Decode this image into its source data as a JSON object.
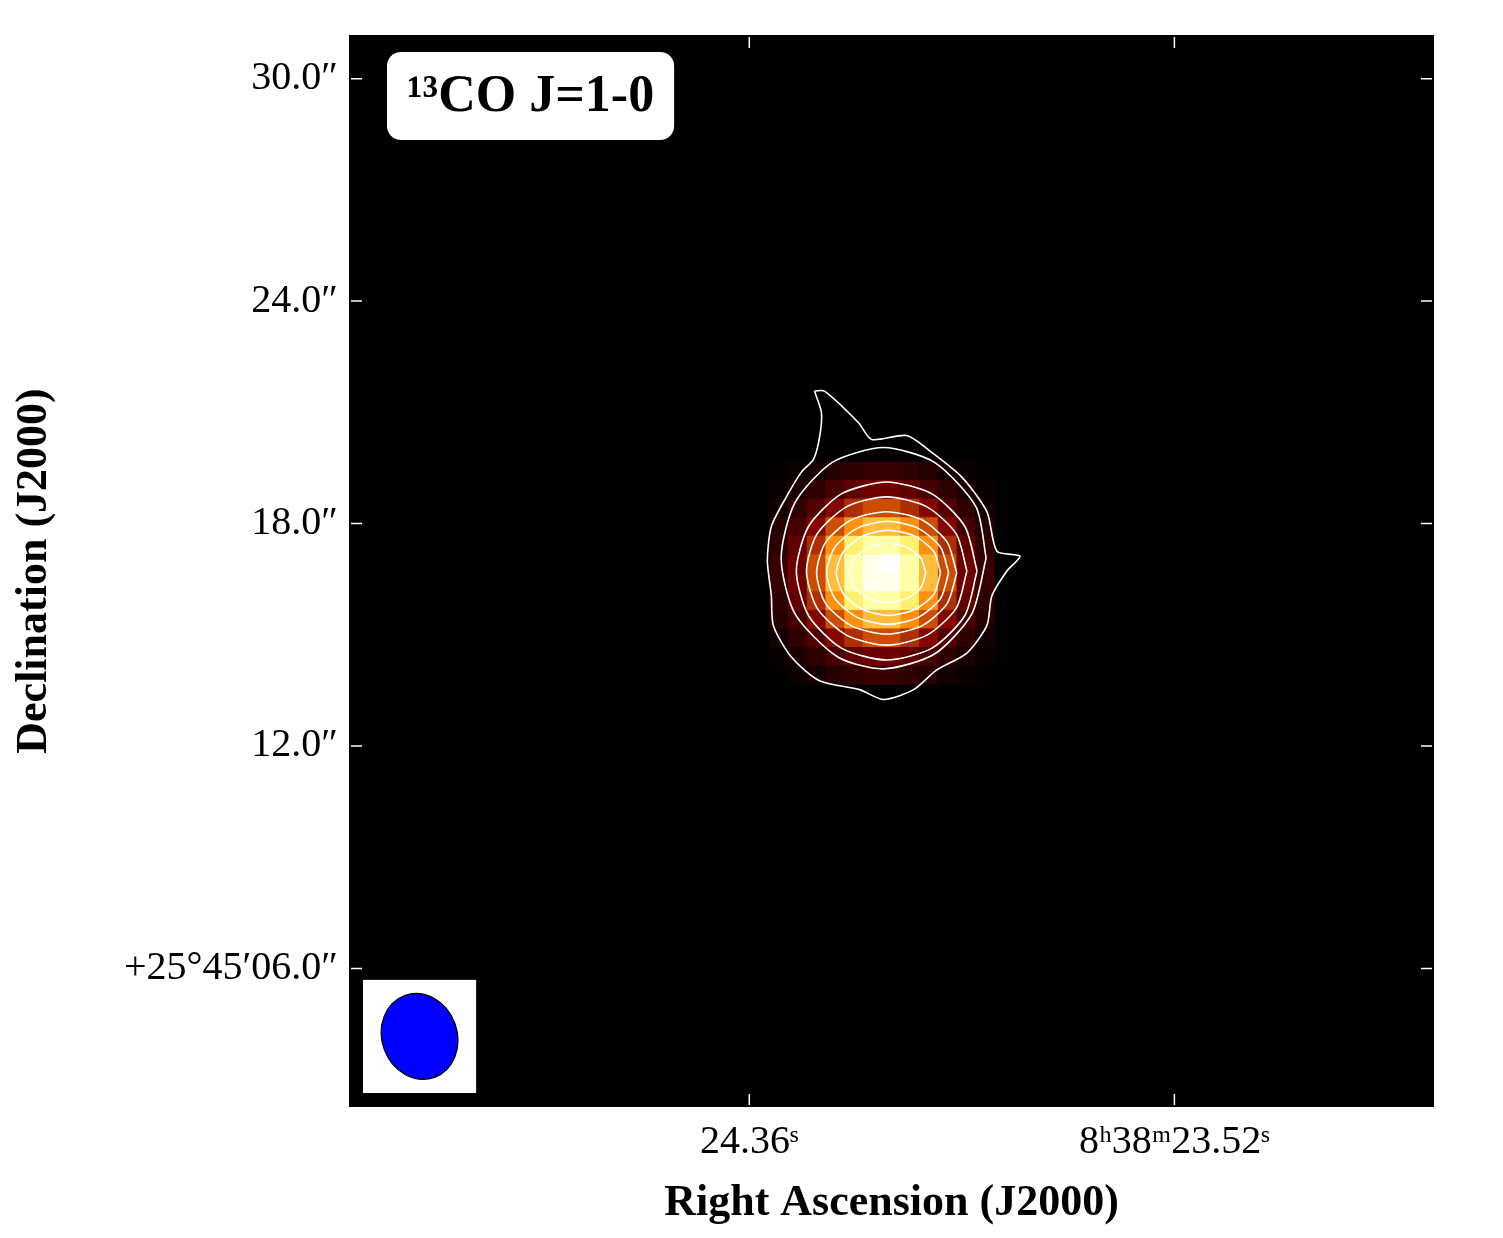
{
  "chart_data": {
    "type": "heatmap",
    "title": "¹³CO J=1-0",
    "x_label": "Right Ascension (J2000)",
    "y_label": "Declination (J2000)",
    "xlim": [
      25.149,
      23.009
    ],
    "ylim": [
      2.29,
      31.15
    ],
    "xticks": [
      {
        "value": 24.36,
        "label": "24.36ˢ"
      },
      {
        "value": 23.52,
        "label": "8ʰ38ᵐ23.52ˢ"
      }
    ],
    "yticks": [
      {
        "value": 30,
        "label": "30.0″"
      },
      {
        "value": 24,
        "label": "24.0″"
      },
      {
        "value": 18,
        "label": "18.0″"
      },
      {
        "value": 12,
        "label": "12.0″"
      },
      {
        "value": 6,
        "label": "+25°45′06.0″"
      }
    ],
    "grid": false,
    "tick_labels": true,
    "x": [
      24.3021,
      24.265,
      24.228,
      24.191,
      24.154,
      24.117,
      24.08,
      24.043,
      24.006,
      23.969,
      23.932,
      23.8949
    ],
    "y": [
      19.42,
      18.92,
      18.42,
      17.92,
      17.42,
      16.92,
      16.42,
      15.92,
      15.42,
      14.92,
      14.42,
      13.92
    ],
    "cells": [
      [
        1,
        2,
        4,
        7,
        9,
        11,
        11,
        9,
        7,
        4,
        2,
        1
      ],
      [
        2,
        5,
        9,
        14,
        19,
        22,
        22,
        19,
        14,
        9,
        5,
        2
      ],
      [
        4,
        9,
        16,
        26,
        34,
        40,
        40,
        34,
        26,
        16,
        9,
        4
      ],
      [
        7,
        14,
        26,
        40,
        53,
        62,
        62,
        53,
        40,
        26,
        14,
        7
      ],
      [
        9,
        19,
        34,
        53,
        72,
        83,
        83,
        72,
        53,
        34,
        19,
        9
      ],
      [
        11,
        22,
        40,
        62,
        83,
        96,
        100,
        83,
        62,
        40,
        22,
        11
      ],
      [
        11,
        22,
        40,
        62,
        83,
        96,
        96,
        83,
        62,
        40,
        22,
        11
      ],
      [
        9,
        19,
        34,
        53,
        72,
        83,
        83,
        72,
        53,
        34,
        19,
        9
      ],
      [
        7,
        14,
        26,
        40,
        53,
        62,
        62,
        53,
        40,
        26,
        14,
        7
      ],
      [
        4,
        9,
        16,
        26,
        34,
        40,
        40,
        34,
        26,
        16,
        9,
        4
      ],
      [
        2,
        5,
        9,
        14,
        19,
        22,
        22,
        19,
        14,
        9,
        5,
        2
      ],
      [
        1,
        2,
        4,
        7,
        9,
        11,
        11,
        9,
        7,
        4,
        2,
        1
      ]
    ],
    "zlim": [
      0,
      100
    ],
    "contours": {
      "color": "#ffffff",
      "paths": [
        [
          [
            24.2312,
            21.573
          ],
          [
            24.2114,
            21.573
          ],
          [
            24.1441,
            20.72
          ],
          [
            24.1183,
            20.267
          ],
          [
            24.049,
            20.373
          ],
          [
            23.9995,
            19.92
          ],
          [
            23.94,
            19.253
          ],
          [
            23.8905,
            18.32
          ],
          [
            23.8707,
            17.253
          ],
          [
            23.8251,
            17.12
          ],
          [
            23.8509,
            16.72
          ],
          [
            23.8806,
            16.053
          ],
          [
            23.8905,
            15.253
          ],
          [
            23.93,
            14.507
          ],
          [
            23.9895,
            14.053
          ],
          [
            24.0351,
            13.52
          ],
          [
            24.0945,
            13.253
          ],
          [
            24.1421,
            13.52
          ],
          [
            24.2213,
            13.76
          ],
          [
            24.2768,
            14.4
          ],
          [
            24.3125,
            15.253
          ],
          [
            24.3164,
            16.053
          ],
          [
            24.3243,
            17.0
          ],
          [
            24.3164,
            17.92
          ],
          [
            24.2867,
            18.72
          ],
          [
            24.257,
            19.387
          ],
          [
            24.2332,
            19.733
          ],
          [
            24.2213,
            20.32
          ],
          [
            24.2174,
            20.987
          ],
          [
            24.2312,
            21.573
          ]
        ],
        [
          [
            23.892,
            17.07
          ],
          [
            23.912,
            18.45
          ],
          [
            23.994,
            19.65
          ],
          [
            24.095,
            20.05
          ],
          [
            24.196,
            19.65
          ],
          [
            24.27,
            18.56
          ],
          [
            24.297,
            17.07
          ],
          [
            24.27,
            15.57
          ],
          [
            24.185,
            14.4
          ],
          [
            24.095,
            14.08
          ],
          [
            23.994,
            14.48
          ],
          [
            23.92,
            15.57
          ],
          [
            23.892,
            17.07
          ]
        ],
        [
          [
            23.91,
            16.72
          ],
          [
            23.934,
            17.92
          ],
          [
            23.999,
            18.8
          ],
          [
            24.089,
            19.12
          ],
          [
            24.178,
            18.8
          ],
          [
            24.243,
            17.92
          ],
          [
            24.267,
            16.72
          ],
          [
            24.243,
            15.52
          ],
          [
            24.178,
            14.64
          ],
          [
            24.089,
            14.32
          ],
          [
            23.999,
            14.64
          ],
          [
            23.934,
            15.52
          ],
          [
            23.91,
            16.72
          ]
        ],
        [
          [
            23.93,
            16.72
          ],
          [
            23.951,
            17.72
          ],
          [
            24.009,
            18.45
          ],
          [
            24.089,
            18.72
          ],
          [
            24.168,
            18.45
          ],
          [
            24.226,
            17.72
          ],
          [
            24.247,
            16.72
          ],
          [
            24.226,
            15.72
          ],
          [
            24.168,
            14.99
          ],
          [
            24.089,
            14.72
          ],
          [
            24.009,
            14.99
          ],
          [
            23.951,
            15.72
          ],
          [
            23.93,
            16.72
          ]
        ],
        [
          [
            23.95,
            16.67
          ],
          [
            23.969,
            17.5
          ],
          [
            24.019,
            18.1
          ],
          [
            24.089,
            18.32
          ],
          [
            24.158,
            18.1
          ],
          [
            24.209,
            17.5
          ],
          [
            24.227,
            16.67
          ],
          [
            24.209,
            15.84
          ],
          [
            24.158,
            15.24
          ],
          [
            24.089,
            15.02
          ],
          [
            24.019,
            15.24
          ],
          [
            23.969,
            15.84
          ],
          [
            23.95,
            16.67
          ]
        ],
        [
          [
            23.966,
            16.67
          ],
          [
            23.982,
            17.36
          ],
          [
            24.026,
            17.87
          ],
          [
            24.087,
            18.06
          ],
          [
            24.147,
            17.87
          ],
          [
            24.191,
            17.36
          ],
          [
            24.207,
            16.67
          ],
          [
            24.191,
            15.98
          ],
          [
            24.147,
            15.47
          ],
          [
            24.087,
            15.28
          ],
          [
            24.026,
            15.47
          ],
          [
            23.982,
            15.98
          ],
          [
            23.966,
            16.67
          ]
        ],
        [
          [
            23.982,
            16.67
          ],
          [
            23.995,
            17.24
          ],
          [
            24.033,
            17.66
          ],
          [
            24.085,
            17.82
          ],
          [
            24.136,
            17.66
          ],
          [
            24.174,
            17.24
          ],
          [
            24.188,
            16.67
          ],
          [
            24.174,
            16.1
          ],
          [
            24.136,
            15.68
          ],
          [
            24.085,
            15.52
          ],
          [
            24.033,
            15.68
          ],
          [
            23.995,
            16.1
          ],
          [
            23.982,
            16.67
          ]
        ],
        [
          [
            24.011,
            16.67
          ],
          [
            24.021,
            17.07
          ],
          [
            24.049,
            17.36
          ],
          [
            24.087,
            17.47
          ],
          [
            24.124,
            17.36
          ],
          [
            24.152,
            17.07
          ],
          [
            24.162,
            16.67
          ],
          [
            24.152,
            16.27
          ],
          [
            24.124,
            15.98
          ],
          [
            24.087,
            15.87
          ],
          [
            24.049,
            15.98
          ],
          [
            24.021,
            16.27
          ],
          [
            24.011,
            16.67
          ]
        ]
      ]
    },
    "beam": {
      "major": 2.35,
      "minor": 2.03,
      "pa": 20,
      "color": "#0000ff"
    }
  }
}
